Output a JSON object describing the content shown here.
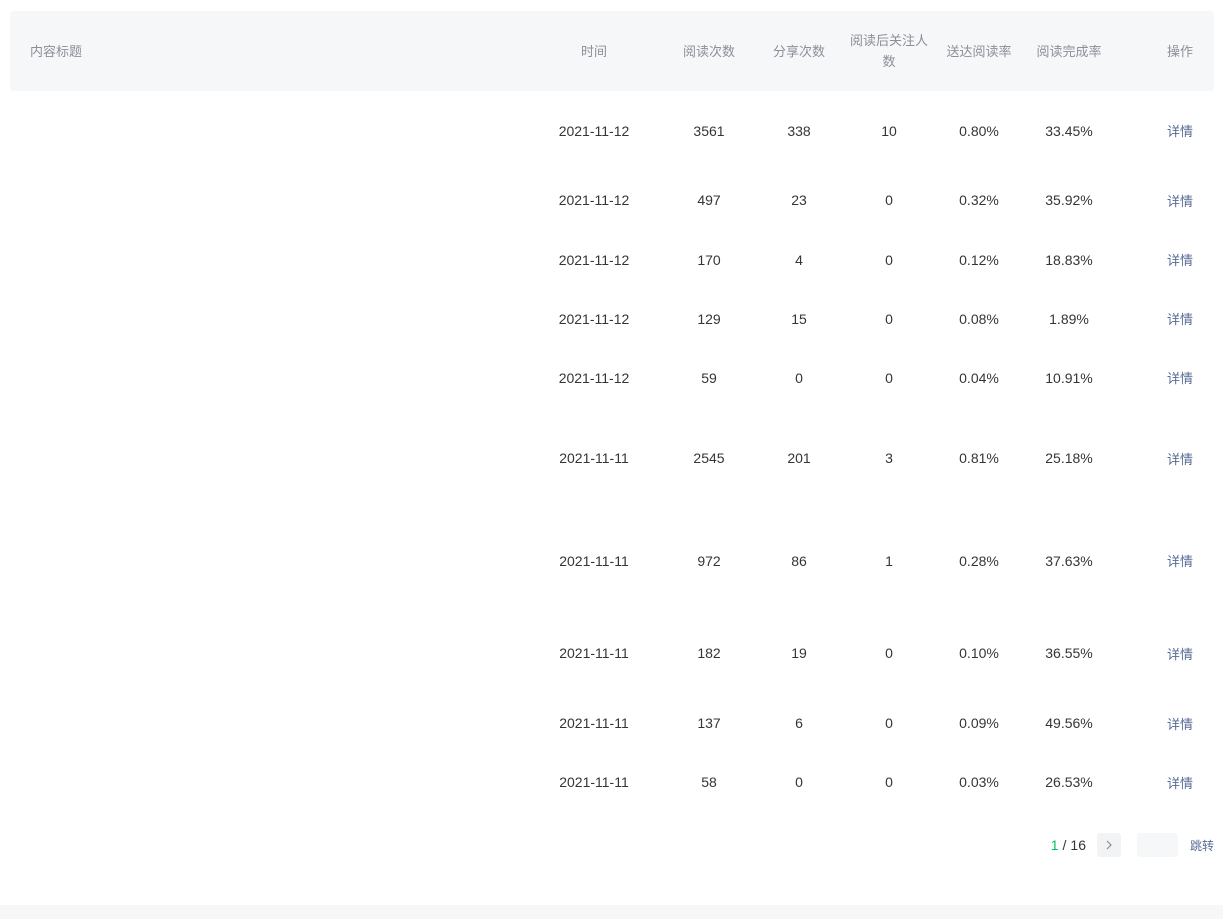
{
  "table": {
    "headers": {
      "title": "内容标题",
      "time": "时间",
      "read": "阅读次数",
      "share": "分享次数",
      "follow": "阅读后关注人数",
      "reach_rate": "送达阅读率",
      "completion_rate": "阅读完成率",
      "op": "操作"
    },
    "rows": [
      {
        "title": "",
        "time": "2021-11-12",
        "read": "3561",
        "share": "338",
        "follow": "10",
        "reach_rate": "0.80%",
        "completion_rate": "33.45%",
        "op": "详情"
      },
      {
        "title": "",
        "time": "2021-11-12",
        "read": "497",
        "share": "23",
        "follow": "0",
        "reach_rate": "0.32%",
        "completion_rate": "35.92%",
        "op": "详情"
      },
      {
        "title": "",
        "time": "2021-11-12",
        "read": "170",
        "share": "4",
        "follow": "0",
        "reach_rate": "0.12%",
        "completion_rate": "18.83%",
        "op": "详情"
      },
      {
        "title": "",
        "time": "2021-11-12",
        "read": "129",
        "share": "15",
        "follow": "0",
        "reach_rate": "0.08%",
        "completion_rate": "1.89%",
        "op": "详情"
      },
      {
        "title": "",
        "time": "2021-11-12",
        "read": "59",
        "share": "0",
        "follow": "0",
        "reach_rate": "0.04%",
        "completion_rate": "10.91%",
        "op": "详情"
      },
      {
        "title": "",
        "time": "2021-11-11",
        "read": "2545",
        "share": "201",
        "follow": "3",
        "reach_rate": "0.81%",
        "completion_rate": "25.18%",
        "op": "详情"
      },
      {
        "title": "",
        "time": "2021-11-11",
        "read": "972",
        "share": "86",
        "follow": "1",
        "reach_rate": "0.28%",
        "completion_rate": "37.63%",
        "op": "详情"
      },
      {
        "title": "",
        "time": "2021-11-11",
        "read": "182",
        "share": "19",
        "follow": "0",
        "reach_rate": "0.10%",
        "completion_rate": "36.55%",
        "op": "详情"
      },
      {
        "title": "",
        "time": "2021-11-11",
        "read": "137",
        "share": "6",
        "follow": "0",
        "reach_rate": "0.09%",
        "completion_rate": "49.56%",
        "op": "详情"
      },
      {
        "title": "",
        "time": "2021-11-11",
        "read": "58",
        "share": "0",
        "follow": "0",
        "reach_rate": "0.03%",
        "completion_rate": "26.53%",
        "op": "详情"
      }
    ]
  },
  "pagination": {
    "current": "1",
    "separator": "/",
    "total": "16",
    "next_icon": "chevron-right-icon",
    "jump_label": "跳转",
    "jump_value": ""
  },
  "colors": {
    "accent": "#07c160",
    "link": "#576b95",
    "header_bg": "#f6f7f8"
  }
}
